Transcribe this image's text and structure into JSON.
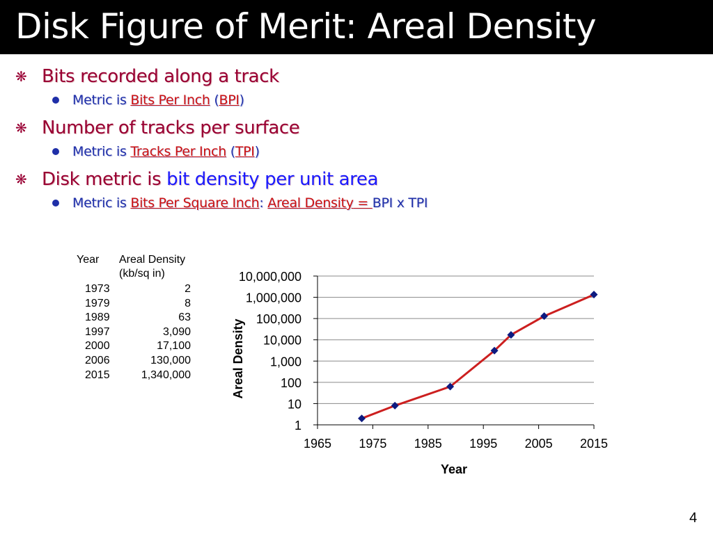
{
  "slide": {
    "title": "Disk Figure of Merit:  Areal Density",
    "page_number": "4"
  },
  "bullets": [
    {
      "text": "Bits recorded along a track",
      "sub": {
        "prefix": "Metric is ",
        "term": "Bits Per Inch",
        "open": " (",
        "abbr": "BPI",
        "close": ")"
      }
    },
    {
      "text": "Number of tracks per surface",
      "sub": {
        "prefix": "Metric is ",
        "term": "Tracks Per Inch",
        "open": " (",
        "abbr": "TPI",
        "close": ")"
      }
    },
    {
      "text_a": "Disk metric is ",
      "text_b": "bit density per unit area",
      "sub": {
        "prefix": "Metric is  ",
        "term": "Bits Per Square Inch",
        "colon": ": ",
        "term2": "Areal Density",
        "eq": " = ",
        "formula": "BPI x TPI"
      }
    }
  ],
  "table": {
    "header": {
      "year": "Year",
      "density_1": "Areal Density",
      "density_2": "(kb/sq in)"
    },
    "rows": [
      {
        "year": "1973",
        "value": "2"
      },
      {
        "year": "1979",
        "value": "8"
      },
      {
        "year": "1989",
        "value": "63"
      },
      {
        "year": "1997",
        "value": "3,090"
      },
      {
        "year": "2000",
        "value": "17,100"
      },
      {
        "year": "2006",
        "value": "130,000"
      },
      {
        "year": "2015",
        "value": "1,340,000"
      }
    ]
  },
  "chart_data": {
    "type": "line",
    "xlabel": "Year",
    "ylabel": "Areal Density",
    "x": [
      1973,
      1979,
      1989,
      1997,
      2000,
      2006,
      2015
    ],
    "y": [
      2,
      8,
      63,
      3090,
      17100,
      130000,
      1340000
    ],
    "xlim": [
      1965,
      2015
    ],
    "ylim": [
      1,
      10000000
    ],
    "yscale": "log",
    "x_ticks": [
      "1965",
      "1975",
      "1985",
      "1995",
      "2005",
      "2015"
    ],
    "y_ticks": [
      "1",
      "10",
      "100",
      "1,000",
      "10,000",
      "100,000",
      "1,000,000",
      "10,000,000"
    ],
    "line_color": "#cc1f1f",
    "marker_color": "#0d1a80",
    "grid": "horizontal"
  }
}
